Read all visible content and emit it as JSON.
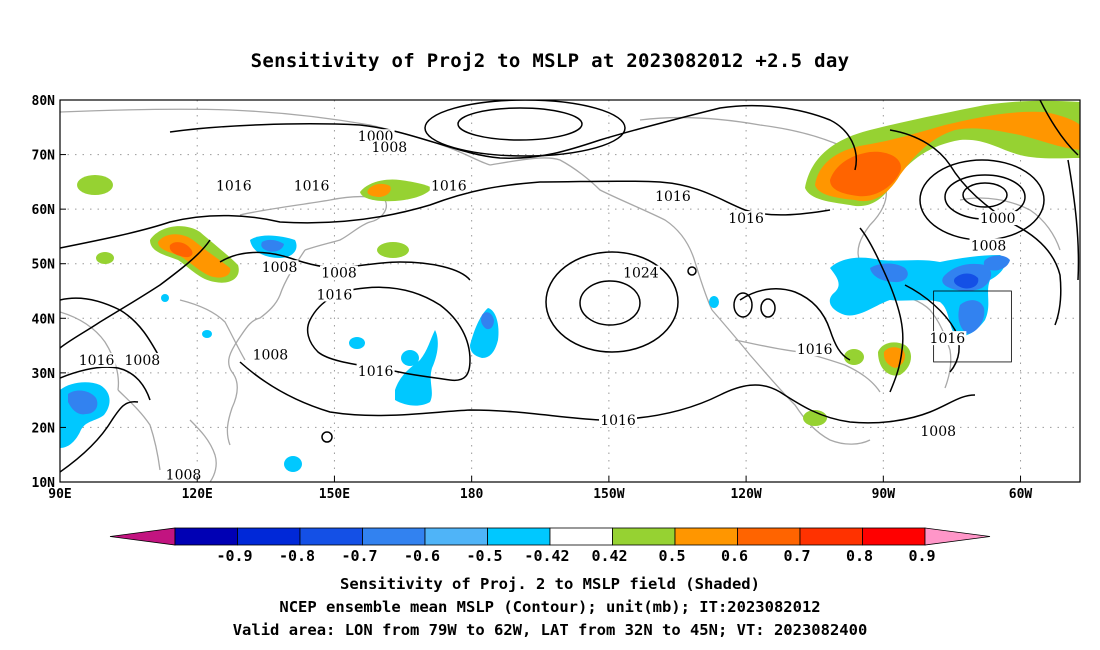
{
  "title": "Sensitivity of Proj2 to MSLP at 2023082012 +2.5 day",
  "axes": {
    "lon_labels": [
      "90E",
      "120E",
      "150E",
      "180",
      "150W",
      "120W",
      "90W",
      "60W"
    ],
    "lat_labels": [
      "80N",
      "70N",
      "60N",
      "50N",
      "40N",
      "30N",
      "20N",
      "10N"
    ],
    "lon_range": [
      90,
      313
    ],
    "lat_range": [
      10,
      80
    ],
    "grid": "dotted"
  },
  "valid_box": {
    "lon": [
      -79,
      -62
    ],
    "lat": [
      32,
      45
    ]
  },
  "contour_labels": [
    {
      "text": "1000",
      "lon": 159,
      "lat": 73
    },
    {
      "text": "1008",
      "lon": 162,
      "lat": 71
    },
    {
      "text": "1016",
      "lon": 128,
      "lat": 64
    },
    {
      "text": "1016",
      "lon": 175,
      "lat": 64
    },
    {
      "text": "1016",
      "lon": 145,
      "lat": 64
    },
    {
      "text": "1016",
      "lon": 224,
      "lat": 62
    },
    {
      "text": "1016",
      "lon": 240,
      "lat": 58
    },
    {
      "text": "1000",
      "lon": 295,
      "lat": 58
    },
    {
      "text": "1008",
      "lon": 293,
      "lat": 53
    },
    {
      "text": "1008",
      "lon": 138,
      "lat": 49
    },
    {
      "text": "1008",
      "lon": 151,
      "lat": 48
    },
    {
      "text": "1016",
      "lon": 150,
      "lat": 44
    },
    {
      "text": "1024",
      "lon": 217,
      "lat": 48
    },
    {
      "text": "1016",
      "lon": 98,
      "lat": 32
    },
    {
      "text": "1008",
      "lon": 108,
      "lat": 32
    },
    {
      "text": "1008",
      "lon": 136,
      "lat": 33
    },
    {
      "text": "1016",
      "lon": 159,
      "lat": 30
    },
    {
      "text": "1016",
      "lon": 255,
      "lat": 34
    },
    {
      "text": "1016",
      "lon": 284,
      "lat": 36
    },
    {
      "text": "1016",
      "lon": 212,
      "lat": 21
    },
    {
      "text": "1008",
      "lon": 282,
      "lat": 19
    },
    {
      "text": "1008",
      "lon": 117,
      "lat": 11
    }
  ],
  "colorbar": {
    "colors": [
      "#c21480",
      "#0000b4",
      "#0028d8",
      "#1450e6",
      "#3282f0",
      "#4fb4f8",
      "#00c8ff",
      "#ffffff",
      "#96d232",
      "#ff9600",
      "#ff6400",
      "#ff3200",
      "#ff0000",
      "#ff96c8"
    ],
    "labels": [
      "-0.9",
      "-0.8",
      "-0.7",
      "-0.6",
      "-0.5",
      "-0.42",
      "0.42",
      "0.5",
      "0.6",
      "0.7",
      "0.8",
      "0.9"
    ]
  },
  "caption_lines": [
    "Sensitivity of Proj. 2 to MSLP field (Shaded)",
    "NCEP ensemble mean MSLP (Contour); unit(mb); IT:2023082012",
    "Valid area: LON from 79W to 62W, LAT from 32N to 45N; VT: 2023082400"
  ],
  "colors": {
    "contour": "#000000",
    "coast": "#a8a8a8",
    "grid": "#9a9a9a",
    "positive_light": "#96d232",
    "positive_mid": "#ff9600",
    "positive_strong": "#ff6400",
    "negative_light": "#00c8ff",
    "negative_mid": "#3282f0",
    "negative_strong": "#1450e6"
  }
}
